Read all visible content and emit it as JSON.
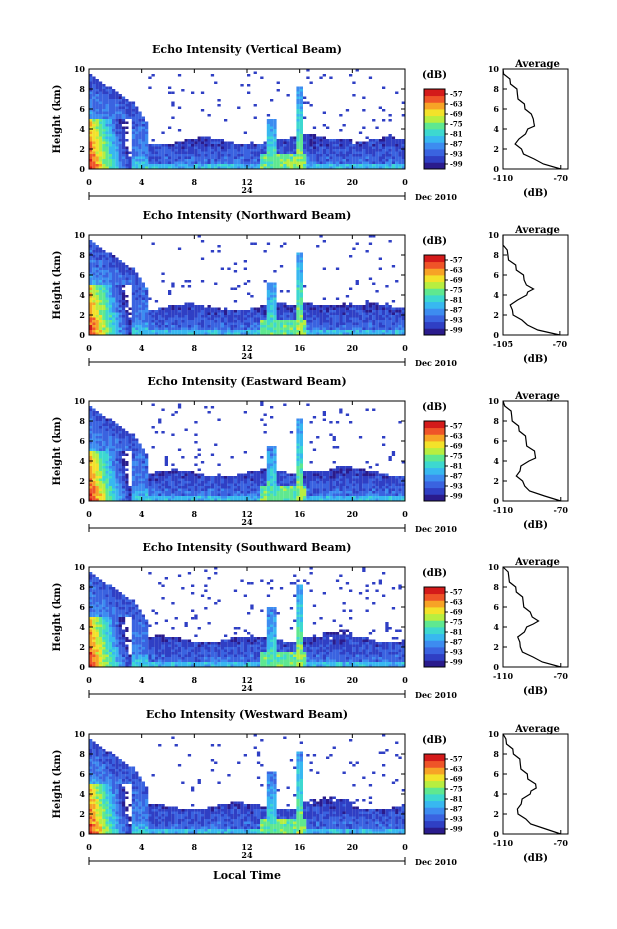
{
  "colors": {
    "scale": [
      "#2a1b8c",
      "#2f3fc4",
      "#3a63e0",
      "#3d8cf0",
      "#38b8f0",
      "#3dd8d0",
      "#5fe890",
      "#b8ee40",
      "#f3e22a",
      "#f7a326",
      "#ef5428",
      "#d41a1a"
    ]
  },
  "chart_data": [
    {
      "type": "heatmap",
      "title": "Echo Intensity (Vertical Beam)",
      "ylabel": "Height (km)",
      "x_ticks": [
        "0",
        "4",
        "8",
        "12",
        "16",
        "20",
        "0"
      ],
      "y_ticks": [
        "0",
        "2",
        "4",
        "6",
        "8",
        "10"
      ],
      "xlim": [
        0,
        24
      ],
      "ylim": [
        0,
        10
      ],
      "day_label": "24",
      "month_label": "Dec 2010",
      "colorbar": {
        "unit": "(dB)",
        "ticks": [
          "-57",
          "-63",
          "-69",
          "-75",
          "-81",
          "-87",
          "-93",
          "-99"
        ]
      },
      "profile": {
        "title": "Average",
        "xlabel": "(dB)",
        "x_ticks": [
          "-110",
          "-70"
        ],
        "y_ticks": [
          "0",
          "2",
          "4",
          "6",
          "8",
          "10"
        ],
        "xlim": [
          -110,
          -65
        ]
      }
    },
    {
      "type": "heatmap",
      "title": "Echo Intensity (Northward Beam)",
      "ylabel": "Height (km)",
      "x_ticks": [
        "0",
        "4",
        "8",
        "12",
        "16",
        "20",
        "0"
      ],
      "y_ticks": [
        "0",
        "2",
        "4",
        "6",
        "8",
        "10"
      ],
      "xlim": [
        0,
        24
      ],
      "ylim": [
        0,
        10
      ],
      "day_label": "24",
      "month_label": "Dec 2010",
      "colorbar": {
        "unit": "(dB)",
        "ticks": [
          "-57",
          "-63",
          "-69",
          "-75",
          "-81",
          "-87",
          "-93",
          "-99"
        ]
      },
      "profile": {
        "title": "Average",
        "xlabel": "(dB)",
        "x_ticks": [
          "-105",
          "-70"
        ],
        "y_ticks": [
          "0",
          "2",
          "4",
          "6",
          "8",
          "10"
        ],
        "xlim": [
          -105,
          -65
        ]
      }
    },
    {
      "type": "heatmap",
      "title": "Echo Intensity (Eastward Beam)",
      "ylabel": "Height (km)",
      "x_ticks": [
        "0",
        "4",
        "8",
        "12",
        "16",
        "20",
        "0"
      ],
      "y_ticks": [
        "0",
        "2",
        "4",
        "6",
        "8",
        "10"
      ],
      "xlim": [
        0,
        24
      ],
      "ylim": [
        0,
        10
      ],
      "day_label": "24",
      "month_label": "Dec 2010",
      "colorbar": {
        "unit": "(dB)",
        "ticks": [
          "-57",
          "-63",
          "-69",
          "-75",
          "-81",
          "-87",
          "-93",
          "-99"
        ]
      },
      "profile": {
        "title": "Average",
        "xlabel": "(dB)",
        "x_ticks": [
          "-110",
          "-70"
        ],
        "y_ticks": [
          "0",
          "2",
          "4",
          "6",
          "8",
          "10"
        ],
        "xlim": [
          -110,
          -65
        ]
      }
    },
    {
      "type": "heatmap",
      "title": "Echo Intensity (Southward Beam)",
      "ylabel": "Height (km)",
      "x_ticks": [
        "0",
        "4",
        "8",
        "12",
        "16",
        "20",
        "0"
      ],
      "y_ticks": [
        "0",
        "2",
        "4",
        "6",
        "8",
        "10"
      ],
      "xlim": [
        0,
        24
      ],
      "ylim": [
        0,
        10
      ],
      "day_label": "24",
      "month_label": "Dec 2010",
      "colorbar": {
        "unit": "(dB)",
        "ticks": [
          "-57",
          "-63",
          "-69",
          "-75",
          "-81",
          "-87",
          "-93",
          "-99"
        ]
      },
      "profile": {
        "title": "Average",
        "xlabel": "(dB)",
        "x_ticks": [
          "-110",
          "-70"
        ],
        "y_ticks": [
          "0",
          "2",
          "4",
          "6",
          "8",
          "10"
        ],
        "xlim": [
          -110,
          -65
        ]
      }
    },
    {
      "type": "heatmap",
      "title": "Echo Intensity (Westward Beam)",
      "ylabel": "Height (km)",
      "x_ticks": [
        "0",
        "4",
        "8",
        "12",
        "16",
        "20",
        "0"
      ],
      "y_ticks": [
        "0",
        "2",
        "4",
        "6",
        "8",
        "10"
      ],
      "xlim": [
        0,
        24
      ],
      "ylim": [
        0,
        10
      ],
      "day_label": "24",
      "month_label": "Dec 2010",
      "colorbar": {
        "unit": "(dB)",
        "ticks": [
          "-57",
          "-63",
          "-69",
          "-75",
          "-81",
          "-87",
          "-93",
          "-99"
        ]
      },
      "profile": {
        "title": "Average",
        "xlabel": "(dB)",
        "x_ticks": [
          "-110",
          "-70"
        ],
        "y_ticks": [
          "0",
          "2",
          "4",
          "6",
          "8",
          "10"
        ],
        "xlim": [
          -110,
          -65
        ]
      }
    }
  ],
  "profile_values": {
    "heights": [
      0,
      0.5,
      1,
      1.5,
      2,
      2.5,
      3,
      3.5,
      4,
      4.3,
      4.6,
      5,
      5.5,
      6,
      6.5,
      7,
      7.5,
      8,
      8.5,
      9,
      9.5,
      10
    ],
    "db": [
      -70,
      -82,
      -90,
      -95,
      -98,
      -100,
      -99,
      -96,
      -92,
      -89,
      -87,
      -89,
      -92,
      -94,
      -96,
      -98,
      -100,
      -102,
      -104,
      -106,
      -108,
      -110
    ]
  },
  "xlabel": "Local Time"
}
